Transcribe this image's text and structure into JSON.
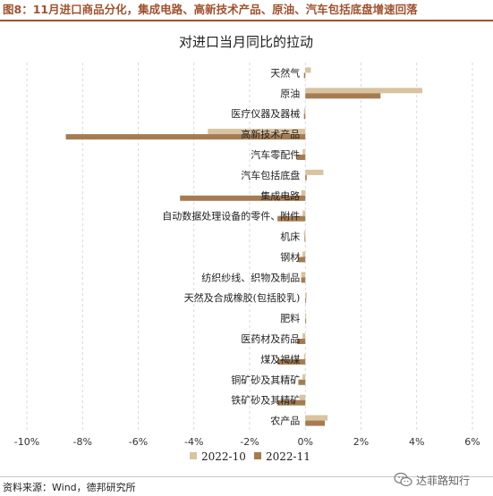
{
  "header": {
    "figure_title": "图8：11月进口商品分化，集成电路、高新技术产品、原油、汽车包括底盘增速回落"
  },
  "chart_data": {
    "type": "bar",
    "orientation": "horizontal",
    "title": "对进口当月同比的拉动",
    "categories": [
      "天然气",
      "原油",
      "医疗仪器及器械",
      "高新技术产品",
      "汽车零配件",
      "汽车包括底盘",
      "集成电路",
      "自动数据处理设备的零件、附件",
      "机床",
      "钢材",
      "纺织纱线、织物及制品",
      "天然及合成橡胶(包括胶乳)",
      "肥料",
      "医药材及药品",
      "煤及褐煤",
      "铜矿砂及其精矿",
      "铁矿砂及其精矿",
      "农产品"
    ],
    "series": [
      {
        "name": "2022-10",
        "color": "#d9c3a0",
        "values": [
          0.2,
          4.2,
          -0.05,
          -3.5,
          -0.1,
          0.65,
          -0.15,
          -0.1,
          -0.05,
          -0.1,
          -0.15,
          0.05,
          0.03,
          -0.1,
          -0.05,
          -0.1,
          -0.2,
          0.8
        ]
      },
      {
        "name": "2022-11",
        "color": "#a57c52",
        "values": [
          -0.05,
          2.7,
          -0.05,
          -8.6,
          -0.3,
          0.05,
          -4.5,
          -1.0,
          -0.03,
          -0.25,
          -0.15,
          0.03,
          0.03,
          -0.3,
          -1.0,
          -0.25,
          -1.0,
          0.7
        ]
      }
    ],
    "xlim": [
      -10,
      6
    ],
    "xticks": [
      "-10%",
      "-8%",
      "-6%",
      "-4%",
      "-2%",
      "0%",
      "2%",
      "4%",
      "6%"
    ],
    "grid": "vertical dashed",
    "legend": "bottom-center"
  },
  "footer": {
    "source": "资料来源：Wind，德邦研究所",
    "watermark": "达菲路知行"
  }
}
